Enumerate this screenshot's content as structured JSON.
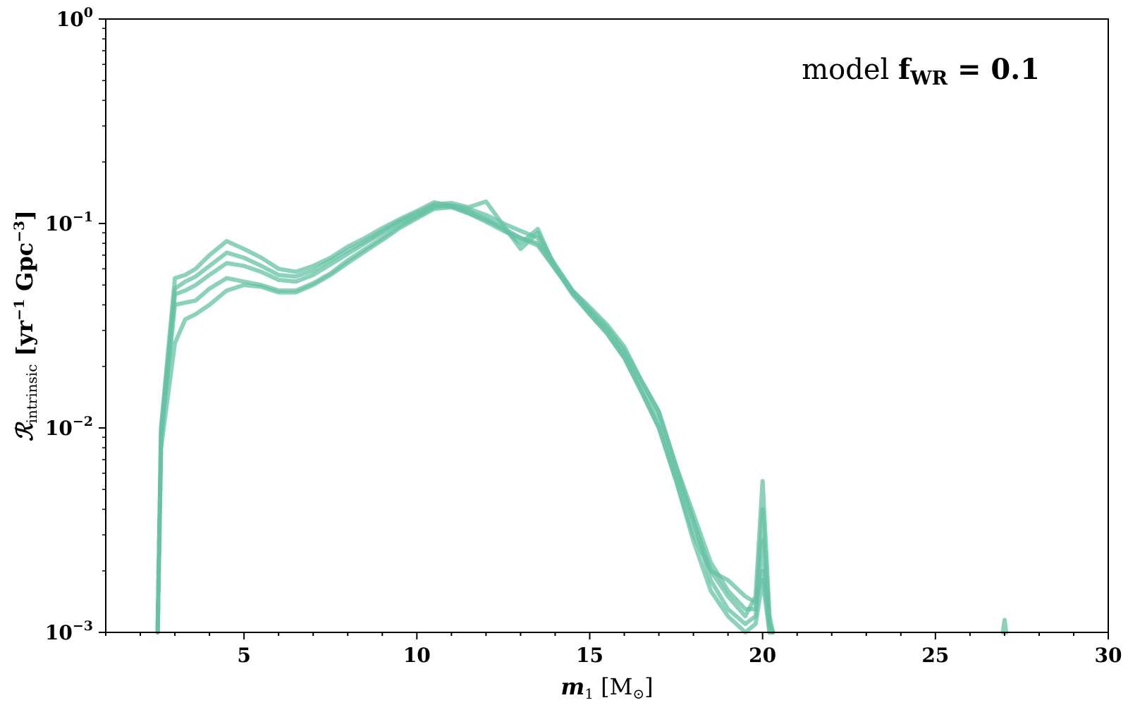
{
  "chart_data": {
    "type": "line",
    "xlabel": {
      "symbol": "m",
      "sub": "1",
      "unit_open": " [M",
      "unit_sym": "⊙",
      "unit_close": "]"
    },
    "ylabel": {
      "symbol": "ℛ",
      "sub": "intrinsic",
      "open": " [yr",
      "exp1": "−1",
      "mid": " Gpc",
      "exp2": "−3",
      "close": "]"
    },
    "annotation": {
      "prefix": "model ",
      "f": "f",
      "sub": "WR",
      "suffix": " = 0.1"
    },
    "xlim": [
      1,
      30
    ],
    "ylim": [
      0.001,
      1
    ],
    "yscale": "log",
    "xticks": [
      5,
      10,
      15,
      20,
      25,
      30
    ],
    "yticks": [
      {
        "value": 0.001,
        "base": "10",
        "exp": "−3"
      },
      {
        "value": 0.01,
        "base": "10",
        "exp": "−2"
      },
      {
        "value": 0.1,
        "base": "10",
        "exp": "−1"
      },
      {
        "value": 1,
        "base": "10",
        "exp": "0"
      }
    ],
    "grid": false,
    "line_color": "#66c2a5",
    "series": [
      {
        "x": [
          2.5,
          2.6,
          3.0,
          3.3,
          3.6,
          4.0,
          4.5,
          5.0,
          5.5,
          6.0,
          6.5,
          7.0,
          7.5,
          8.0,
          8.5,
          9.0,
          9.5,
          10.0,
          10.5,
          11.0,
          11.5,
          12.0,
          12.5,
          13.0,
          13.5,
          14.0,
          14.5,
          15.0,
          15.5,
          16.0,
          16.5,
          17.0,
          17.5,
          18.0,
          18.5,
          19.0,
          19.5,
          19.8,
          20.0,
          20.2,
          20.3
        ],
        "y": [
          0.001,
          0.01,
          0.054,
          0.056,
          0.06,
          0.07,
          0.082,
          0.075,
          0.068,
          0.06,
          0.058,
          0.062,
          0.068,
          0.077,
          0.085,
          0.095,
          0.105,
          0.115,
          0.127,
          0.122,
          0.112,
          0.104,
          0.095,
          0.085,
          0.08,
          0.06,
          0.046,
          0.037,
          0.03,
          0.023,
          0.016,
          0.011,
          0.006,
          0.0035,
          0.002,
          0.0015,
          0.0012,
          0.0015,
          0.0055,
          0.0012,
          0.001
        ]
      },
      {
        "x": [
          2.5,
          2.6,
          3.0,
          3.3,
          3.6,
          4.0,
          4.5,
          5.0,
          5.5,
          6.0,
          6.5,
          7.0,
          7.5,
          8.0,
          8.5,
          9.0,
          9.5,
          10.0,
          10.5,
          11.0,
          11.5,
          12.0,
          12.5,
          13.0,
          13.5,
          14.0,
          14.5,
          15.0,
          15.5,
          16.0,
          16.5,
          17.0,
          17.5,
          18.0,
          18.5,
          19.0,
          19.5,
          19.8,
          20.0,
          20.2,
          20.3
        ],
        "y": [
          0.001,
          0.009,
          0.04,
          0.041,
          0.042,
          0.048,
          0.054,
          0.052,
          0.05,
          0.047,
          0.047,
          0.051,
          0.057,
          0.066,
          0.075,
          0.085,
          0.097,
          0.108,
          0.12,
          0.123,
          0.118,
          0.11,
          0.1,
          0.092,
          0.085,
          0.063,
          0.047,
          0.038,
          0.031,
          0.024,
          0.017,
          0.012,
          0.0065,
          0.0038,
          0.0022,
          0.0016,
          0.0013,
          0.0013,
          0.004,
          0.0011,
          0.001
        ]
      },
      {
        "x": [
          2.5,
          2.6,
          3.0,
          3.3,
          3.6,
          4.0,
          4.5,
          5.0,
          5.5,
          6.0,
          6.5,
          7.0,
          7.5,
          8.0,
          8.5,
          9.0,
          9.5,
          10.0,
          10.5,
          11.0,
          11.5,
          12.0,
          12.5,
          13.0,
          13.5,
          14.0,
          14.5,
          15.0,
          15.5,
          16.0,
          16.5,
          17.0,
          17.5,
          18.0,
          18.5,
          19.0,
          19.5,
          19.8,
          20.0,
          20.2,
          20.3
        ],
        "y": [
          0.001,
          0.008,
          0.026,
          0.034,
          0.036,
          0.04,
          0.047,
          0.05,
          0.049,
          0.046,
          0.046,
          0.05,
          0.056,
          0.064,
          0.073,
          0.083,
          0.095,
          0.106,
          0.118,
          0.12,
          0.112,
          0.102,
          0.092,
          0.085,
          0.078,
          0.06,
          0.046,
          0.036,
          0.029,
          0.022,
          0.015,
          0.01,
          0.0055,
          0.003,
          0.002,
          0.0018,
          0.0015,
          0.0014,
          0.002,
          0.0011,
          0.001
        ]
      },
      {
        "x": [
          2.5,
          2.6,
          3.0,
          3.3,
          3.6,
          4.0,
          4.5,
          5.0,
          5.5,
          6.0,
          6.5,
          7.0,
          7.5,
          8.0,
          8.5,
          9.0,
          9.5,
          10.0,
          10.5,
          11.0,
          11.5,
          12.0,
          12.5,
          13.0,
          13.5,
          14.0,
          14.5,
          15.0,
          15.5,
          16.0,
          16.5,
          17.0,
          17.5,
          18.0,
          18.5,
          19.0,
          19.5,
          19.8,
          20.0,
          20.2,
          20.3
        ],
        "y": [
          0.001,
          0.01,
          0.048,
          0.052,
          0.055,
          0.062,
          0.072,
          0.068,
          0.062,
          0.056,
          0.055,
          0.059,
          0.066,
          0.074,
          0.082,
          0.092,
          0.103,
          0.113,
          0.124,
          0.126,
          0.12,
          0.128,
          0.098,
          0.075,
          0.09,
          0.062,
          0.047,
          0.039,
          0.032,
          0.025,
          0.017,
          0.012,
          0.0065,
          0.0035,
          0.0018,
          0.0013,
          0.0011,
          0.0012,
          0.0028,
          0.001,
          0.001
        ]
      },
      {
        "x": [
          2.5,
          2.6,
          3.0,
          3.3,
          3.6,
          4.0,
          4.5,
          5.0,
          5.5,
          6.0,
          6.5,
          7.0,
          7.5,
          8.0,
          8.5,
          9.0,
          9.5,
          10.0,
          10.5,
          11.0,
          11.5,
          12.0,
          12.5,
          13.0,
          13.5,
          14.0,
          14.5,
          15.0,
          15.5,
          16.0,
          16.5,
          17.0,
          17.5,
          18.0,
          18.5,
          19.0,
          19.5,
          19.8,
          20.0,
          20.2,
          20.3
        ],
        "y": [
          0.001,
          0.009,
          0.045,
          0.047,
          0.05,
          0.056,
          0.064,
          0.062,
          0.058,
          0.053,
          0.052,
          0.056,
          0.063,
          0.071,
          0.08,
          0.09,
          0.101,
          0.11,
          0.122,
          0.121,
          0.115,
          0.105,
          0.094,
          0.08,
          0.094,
          0.061,
          0.045,
          0.036,
          0.029,
          0.022,
          0.015,
          0.01,
          0.0055,
          0.0028,
          0.0016,
          0.0012,
          0.001,
          0.0011,
          0.0018,
          0.001,
          0.001
        ]
      },
      {
        "x": [
          26.95,
          27.0,
          27.05
        ],
        "y": [
          0.001,
          0.00115,
          0.001
        ]
      }
    ]
  }
}
